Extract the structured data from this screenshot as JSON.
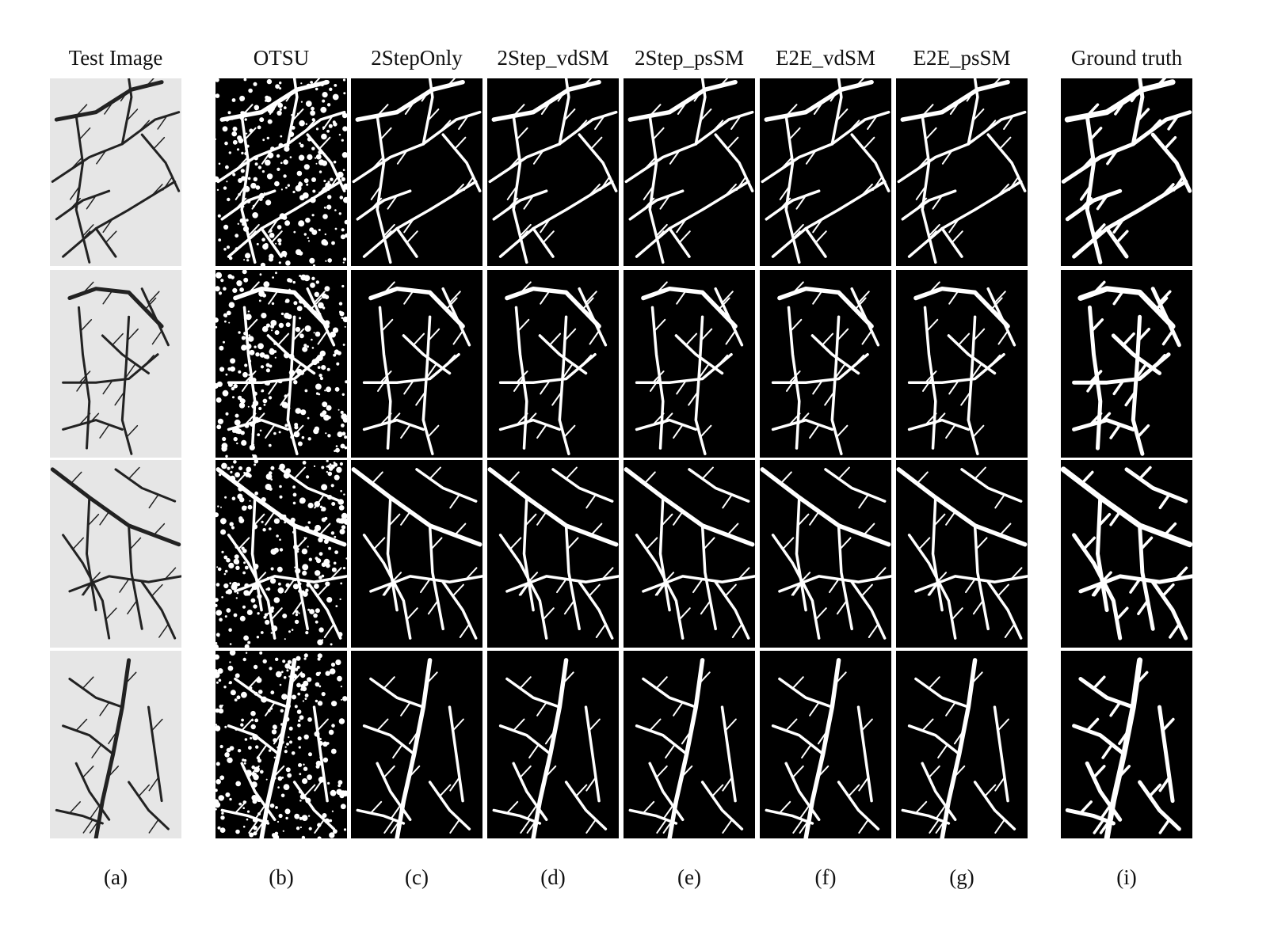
{
  "figure": {
    "columns": [
      {
        "id": "a",
        "header": "Test Image",
        "label": "(a)",
        "style": "photo"
      },
      {
        "id": "b",
        "header": "OTSU",
        "label": "(b)",
        "style": "otsu"
      },
      {
        "id": "c",
        "header": "2StepOnly",
        "label": "(c)",
        "style": "seg"
      },
      {
        "id": "d",
        "header": "2Step_vdSM",
        "label": "(d)",
        "style": "seg"
      },
      {
        "id": "e",
        "header": "2Step_psSM",
        "label": "(e)",
        "style": "seg"
      },
      {
        "id": "f",
        "header": "E2E_vdSM",
        "label": "(f)",
        "style": "seg"
      },
      {
        "id": "g",
        "header": "E2E_psSM",
        "label": "(g)",
        "style": "seg"
      },
      {
        "id": "i",
        "header": "Ground truth",
        "label": "(i)",
        "style": "seg"
      }
    ],
    "row_count": 4
  }
}
